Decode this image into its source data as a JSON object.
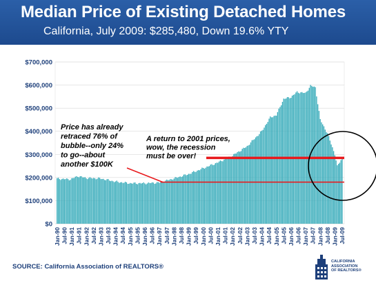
{
  "title": "Median Price of Existing Detached Homes",
  "subtitle": "California, July 2009: $285,480, Down 19.6% YTY",
  "source": "SOURCE: California Association of REALTORS®",
  "logo": {
    "line1": "CALIFORNIA",
    "line2": "ASSOCIATION",
    "line3": "OF REALTORS®"
  },
  "annotations": {
    "left": [
      "Price has already",
      "retraced 76% of",
      "bubble--only 24%",
      "to go--about",
      "another $100K"
    ],
    "right": [
      "A return to 2001 prices,",
      "wow, the recession",
      "must be over!"
    ]
  },
  "colors": {
    "header": "#1d4a8e",
    "bars": "#2aa9b9",
    "annotation_line": "#e8191c",
    "axis_text": "#1d3f7a"
  },
  "chart_data": {
    "type": "bar",
    "title": "Median Price of Existing Detached Homes",
    "subtitle": "California, July 2009: $285,480, Down 19.6% YTY",
    "ylim": [
      0,
      700000
    ],
    "yticks": [
      0,
      100000,
      200000,
      300000,
      400000,
      500000,
      600000,
      700000
    ],
    "ytick_labels": [
      "$0",
      "$100,000",
      "$200,000",
      "$300,000",
      "$400,000",
      "$500,000",
      "$600,000",
      "$700,000"
    ],
    "xtick_labels": [
      "Jan-90",
      "Jul-90",
      "Jan-91",
      "Jul-91",
      "Jan-92",
      "Jul-92",
      "Jan-93",
      "Jul-93",
      "Jan-94",
      "Jul-94",
      "Jan-95",
      "Jul-95",
      "Jan-96",
      "Jul-96",
      "Jan-97",
      "Jul-97",
      "Jan-98",
      "Jul-98",
      "Jan-99",
      "Jul-99",
      "Jan-00",
      "Jul-00",
      "Jan-01",
      "Jul-01",
      "Jan-02",
      "Jul-02",
      "Jan-03",
      "Jul-03",
      "Jan-04",
      "Jul-04",
      "Jan-05",
      "Jul-05",
      "Jan-06",
      "Jul-06",
      "Jan-07",
      "Jul-07",
      "Jan-08",
      "Jul-08",
      "Jan-09",
      "Jul-09"
    ],
    "series_monthly_key_points": [
      {
        "month": "1990-01",
        "value": 195000
      },
      {
        "month": "1990-12",
        "value": 192000
      },
      {
        "month": "1991-06",
        "value": 206000
      },
      {
        "month": "1992-01",
        "value": 198000
      },
      {
        "month": "1992-12",
        "value": 196000
      },
      {
        "month": "1993-06",
        "value": 190000
      },
      {
        "month": "1994-01",
        "value": 182000
      },
      {
        "month": "1995-01",
        "value": 175000
      },
      {
        "month": "1996-01",
        "value": 175000
      },
      {
        "month": "1997-01",
        "value": 178000
      },
      {
        "month": "1998-01",
        "value": 196000
      },
      {
        "month": "1999-01",
        "value": 215000
      },
      {
        "month": "2000-01",
        "value": 240000
      },
      {
        "month": "2001-01",
        "value": 265000
      },
      {
        "month": "2002-01",
        "value": 295000
      },
      {
        "month": "2003-01",
        "value": 335000
      },
      {
        "month": "2004-01",
        "value": 400000
      },
      {
        "month": "2004-08",
        "value": 460000
      },
      {
        "month": "2005-01",
        "value": 470000
      },
      {
        "month": "2005-07",
        "value": 540000
      },
      {
        "month": "2006-01",
        "value": 548000
      },
      {
        "month": "2006-06",
        "value": 570000
      },
      {
        "month": "2007-01",
        "value": 565000
      },
      {
        "month": "2007-05",
        "value": 597000
      },
      {
        "month": "2007-09",
        "value": 590000
      },
      {
        "month": "2008-01",
        "value": 450000
      },
      {
        "month": "2008-07",
        "value": 390000
      },
      {
        "month": "2009-01",
        "value": 300000
      },
      {
        "month": "2009-03",
        "value": 248000
      },
      {
        "month": "2009-07",
        "value": 285480
      }
    ],
    "reference_lines": [
      {
        "value": 285000,
        "label": "A return to 2001 prices, wow, the recession must be over!"
      },
      {
        "value": 180000,
        "label": "Price has already retraced 76% of bubble--only 24% to go--about another $100K"
      }
    ]
  }
}
